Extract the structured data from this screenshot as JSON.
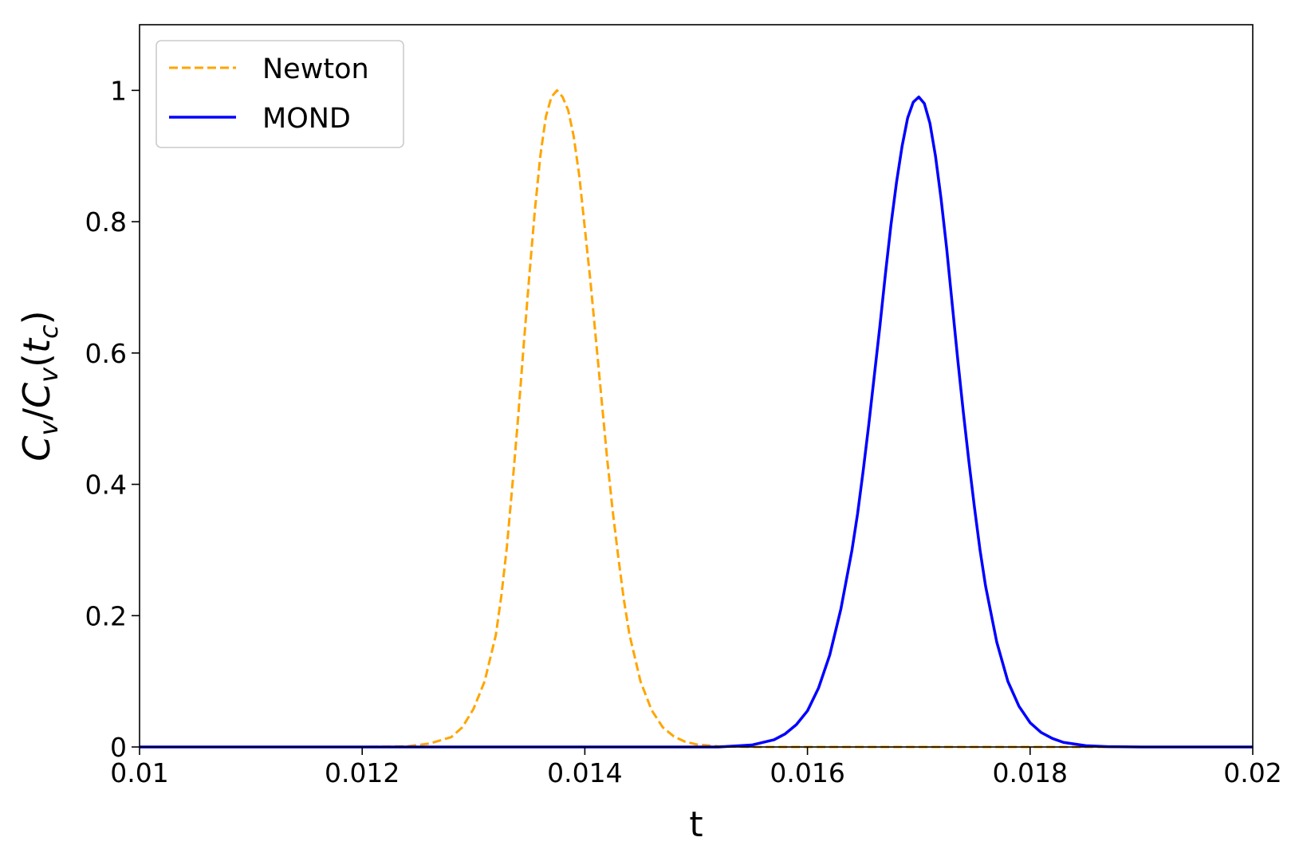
{
  "chart_data": {
    "type": "line",
    "title": "",
    "xlabel": "t",
    "ylabel": {
      "C1": "C",
      "s1": "v",
      "slash": "/",
      "C2": "C",
      "s2": "v",
      "open": "(",
      "t": "t",
      "s3": "c",
      "close": ")"
    },
    "xlim": [
      0.01,
      0.02
    ],
    "ylim": [
      0,
      1.1
    ],
    "x_ticks": [
      0.01,
      0.012,
      0.014,
      0.016,
      0.018,
      0.02
    ],
    "x_tick_labels": [
      "0.01",
      "0.012",
      "0.014",
      "0.016",
      "0.018",
      "0.02"
    ],
    "y_ticks": [
      0,
      0.2,
      0.4,
      0.6,
      0.8,
      1.0
    ],
    "y_tick_labels": [
      "0",
      "0.2",
      "0.4",
      "0.6",
      "0.8",
      "1"
    ],
    "grid": false,
    "legend_position": "top-left",
    "series": [
      {
        "name": "Newton",
        "color": "#FFA500",
        "style": "dashed",
        "x": [
          0.01,
          0.0115,
          0.012,
          0.0124,
          0.0126,
          0.0128,
          0.0129,
          0.013,
          0.0131,
          0.0132,
          0.01325,
          0.0133,
          0.01335,
          0.0134,
          0.01345,
          0.0135,
          0.01355,
          0.0136,
          0.01365,
          0.0137,
          0.01375,
          0.0138,
          0.01385,
          0.0139,
          0.01395,
          0.014,
          0.01405,
          0.0141,
          0.01415,
          0.0142,
          0.01425,
          0.0143,
          0.01435,
          0.0144,
          0.0145,
          0.0146,
          0.0147,
          0.0148,
          0.0149,
          0.015,
          0.0152,
          0.0155,
          0.016,
          0.02
        ],
        "y": [
          0.0,
          0.0,
          0.0,
          0.001,
          0.005,
          0.015,
          0.03,
          0.058,
          0.1,
          0.17,
          0.23,
          0.305,
          0.4,
          0.5,
          0.61,
          0.715,
          0.815,
          0.9,
          0.96,
          0.99,
          1.0,
          0.99,
          0.97,
          0.93,
          0.87,
          0.79,
          0.71,
          0.62,
          0.53,
          0.44,
          0.36,
          0.29,
          0.225,
          0.172,
          0.1,
          0.056,
          0.03,
          0.016,
          0.008,
          0.004,
          0.001,
          0.0,
          0.0,
          0.0
        ]
      },
      {
        "name": "MOND",
        "color": "#0000FF",
        "style": "solid",
        "x": [
          0.01,
          0.014,
          0.0152,
          0.0155,
          0.0157,
          0.0158,
          0.0159,
          0.016,
          0.0161,
          0.0162,
          0.0163,
          0.0164,
          0.01645,
          0.0165,
          0.01655,
          0.0166,
          0.01665,
          0.0167,
          0.01675,
          0.0168,
          0.01685,
          0.0169,
          0.01695,
          0.017,
          0.01705,
          0.0171,
          0.01715,
          0.0172,
          0.01725,
          0.0173,
          0.01735,
          0.0174,
          0.01745,
          0.0175,
          0.01755,
          0.0176,
          0.0177,
          0.0178,
          0.0179,
          0.018,
          0.0181,
          0.0182,
          0.0183,
          0.0185,
          0.0187,
          0.019,
          0.02
        ],
        "y": [
          0.0,
          0.0,
          0.0,
          0.003,
          0.011,
          0.02,
          0.034,
          0.055,
          0.09,
          0.14,
          0.21,
          0.3,
          0.355,
          0.42,
          0.49,
          0.565,
          0.64,
          0.72,
          0.795,
          0.86,
          0.915,
          0.958,
          0.982,
          0.99,
          0.98,
          0.95,
          0.9,
          0.835,
          0.76,
          0.675,
          0.59,
          0.51,
          0.435,
          0.365,
          0.3,
          0.245,
          0.16,
          0.1,
          0.062,
          0.037,
          0.022,
          0.013,
          0.007,
          0.002,
          0.0005,
          0.0,
          0.0
        ]
      }
    ]
  }
}
